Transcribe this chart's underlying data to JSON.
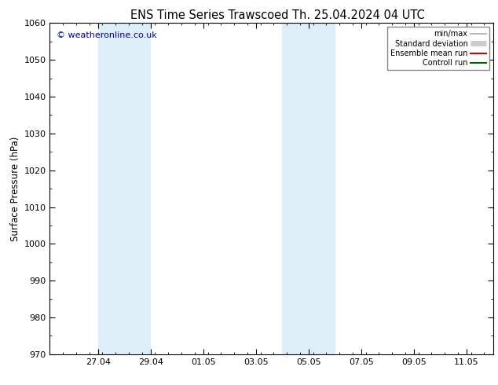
{
  "title_left": "ENS Time Series Trawscoed",
  "title_right": "Th. 25.04.2024 04 UTC",
  "ylabel": "Surface Pressure (hPa)",
  "ylim": [
    970,
    1060
  ],
  "yticks": [
    970,
    980,
    990,
    1000,
    1010,
    1020,
    1030,
    1040,
    1050,
    1060
  ],
  "xtick_labels": [
    "27.04",
    "29.04",
    "01.05",
    "03.05",
    "05.05",
    "07.05",
    "09.05",
    "11.05"
  ],
  "shaded_color": "#ddeef8",
  "watermark": "© weatheronline.co.uk",
  "watermark_color": "#0000bb",
  "legend_entries": [
    {
      "label": "min/max",
      "color": "#aaaaaa",
      "lw": 1.2
    },
    {
      "label": "Standard deviation",
      "color": "#cccccc",
      "lw": 5
    },
    {
      "label": "Ensemble mean run",
      "color": "#cc0000",
      "lw": 1.5
    },
    {
      "label": "Controll run",
      "color": "#006600",
      "lw": 1.5
    }
  ],
  "bg_color": "#ffffff",
  "plot_bg_color": "#ffffff",
  "title_fontsize": 10.5,
  "axis_label_fontsize": 8.5,
  "tick_fontsize": 8,
  "watermark_fontsize": 8
}
